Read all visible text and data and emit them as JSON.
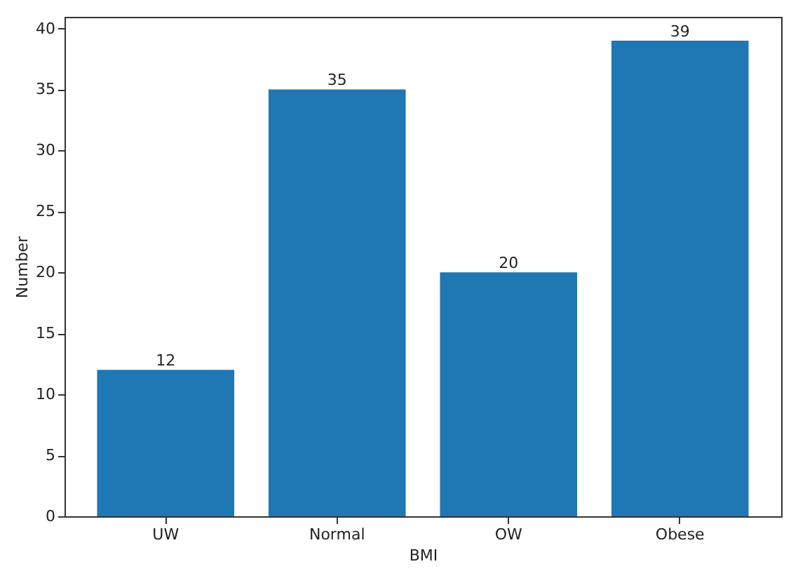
{
  "chart_data": {
    "type": "bar",
    "xlabel": "BMI",
    "ylabel": "Number",
    "categories": [
      "UW",
      "Normal",
      "OW",
      "Obese"
    ],
    "values": [
      12,
      35,
      20,
      39
    ],
    "color": "#1f77b4",
    "ylim": [
      0,
      40.95
    ],
    "yticks": [
      0,
      5,
      10,
      15,
      20,
      25,
      30,
      35,
      40
    ],
    "data_labels": true,
    "grid": false
  }
}
